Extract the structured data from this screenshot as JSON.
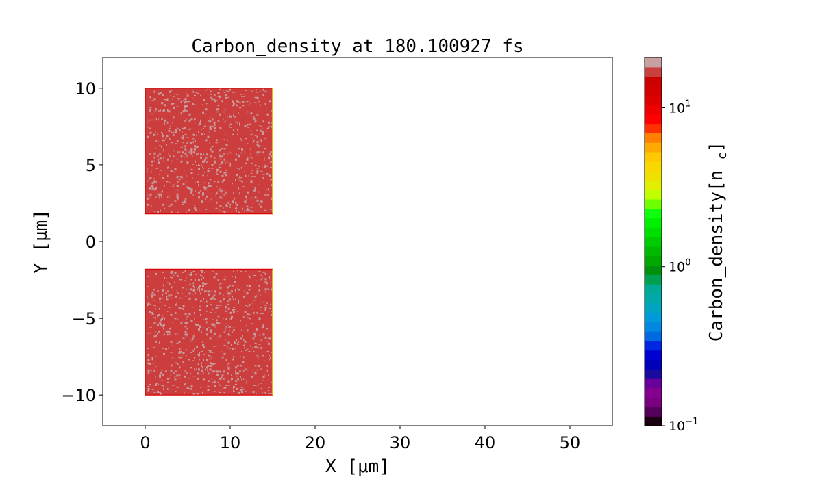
{
  "chart_data": {
    "type": "heatmap",
    "title": "Carbon_density at 180.100927 fs",
    "xlabel": "X [μm]",
    "ylabel": "Y [μm]",
    "xlim": [
      -5,
      55
    ],
    "ylim": [
      -12,
      12
    ],
    "xticks": [
      0,
      10,
      20,
      30,
      40,
      50
    ],
    "xtick_labels": [
      "0",
      "10",
      "20",
      "30",
      "40",
      "50"
    ],
    "yticks": [
      -10,
      -5,
      0,
      5,
      10
    ],
    "ytick_labels": [
      "−10",
      "−5",
      "0",
      "5",
      "10"
    ],
    "regions": [
      {
        "x": [
          0,
          15
        ],
        "y": [
          1.8,
          10
        ],
        "density": 15,
        "speckle_density": 20
      },
      {
        "x": [
          0,
          15
        ],
        "y": [
          -10,
          -1.8
        ],
        "density": 15,
        "speckle_density": 20
      }
    ],
    "region_color": "#cc3d3d",
    "speckle_color": "#c89a9a",
    "edge_color": "#dd0000",
    "edge_right_color": "#f8d800",
    "colorbar": {
      "label": "Carbon_density[n_c]",
      "scale": "log",
      "range": [
        0.1,
        20.7
      ],
      "ticks": [
        0.1,
        1,
        10
      ],
      "tick_base": [
        "10",
        "10",
        "10"
      ],
      "tick_exp": [
        "−1",
        "0",
        "1"
      ],
      "colors": [
        "#1a0010",
        "#55005a",
        "#7a0080",
        "#85008f",
        "#6a009a",
        "#1a0aa0",
        "#0000b8",
        "#0000d0",
        "#0028e0",
        "#0068e0",
        "#0088e0",
        "#009ad8",
        "#00a4c0",
        "#00a8a8",
        "#00a898",
        "#00a050",
        "#009010",
        "#00a800",
        "#00b800",
        "#00cc00",
        "#00e000",
        "#00f000",
        "#10ff10",
        "#70ff00",
        "#c0ff00",
        "#e0f000",
        "#f0e000",
        "#f8d800",
        "#ffc800",
        "#ffaa00",
        "#ff8000",
        "#ff3000",
        "#ff0000",
        "#ee0000",
        "#dd0000",
        "#d40000",
        "#cc0000",
        "#c84040",
        "#c8a0a0"
      ]
    }
  }
}
